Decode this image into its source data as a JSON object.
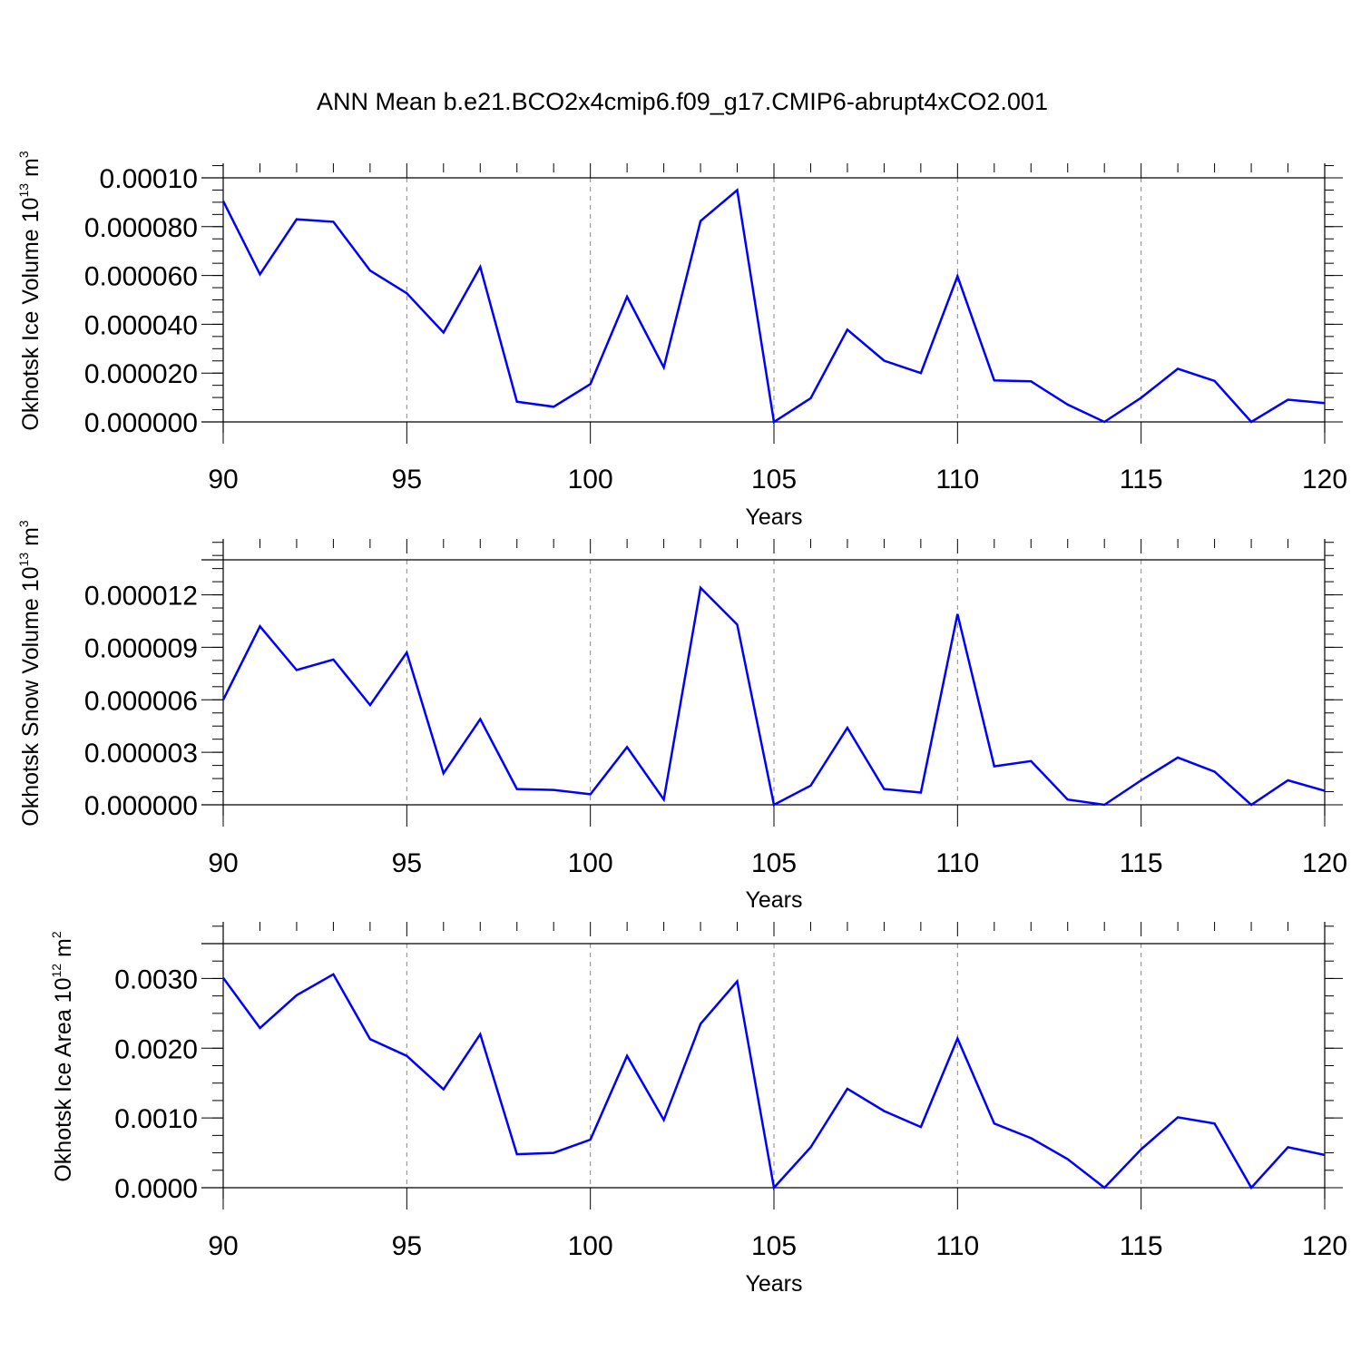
{
  "title": "ANN Mean b.e21.BCO2x4cmip6.f09_g17.CMIP6-abrupt4xCO2.001",
  "colors": {
    "line": "#0000ff",
    "axis": "#000000",
    "grid": "#888888"
  },
  "chart_data": [
    {
      "type": "line",
      "ylabel": {
        "text": "Okhotsk Ice Volume 10",
        "exp": "13",
        "unit": " m",
        "unit_exp": "3"
      },
      "xlabel": "Years",
      "xlim": [
        90,
        120
      ],
      "ylim": [
        -0.0,
        0.0001
      ],
      "xticks": [
        90,
        95,
        100,
        105,
        110,
        115,
        120
      ],
      "xtick_labels": [
        "90",
        "95",
        "100",
        "105",
        "110",
        "115",
        "120"
      ],
      "yticks": [
        0,
        2e-05,
        4e-05,
        6e-05,
        8e-05,
        0.0001
      ],
      "ytick_labels": [
        "0.000000",
        "0.000020",
        "0.000040",
        "0.000060",
        "0.000080",
        "0.00010"
      ],
      "grid": "vertical-dashed",
      "x": [
        90,
        91,
        92,
        93,
        94,
        95,
        96,
        97,
        98,
        99,
        100,
        101,
        102,
        103,
        104,
        105,
        106,
        107,
        108,
        109,
        110,
        111,
        112,
        113,
        114,
        115,
        116,
        117,
        118,
        119,
        120
      ],
      "values": [
        9.05e-05,
        6.05e-05,
        8.3e-05,
        8.2e-05,
        6.2e-05,
        5.27e-05,
        3.66e-05,
        6.35e-05,
        8.3e-06,
        6.2e-06,
        1.55e-05,
        5.13e-05,
        2.23e-05,
        8.23e-05,
        9.5e-05,
        0.0,
        9.7e-06,
        3.78e-05,
        2.51e-05,
        2e-05,
        5.97e-05,
        1.7e-05,
        1.66e-05,
        7.1e-06,
        0.0,
        9.9e-06,
        2.18e-05,
        1.68e-05,
        0.0,
        9.1e-06,
        7.7e-06
      ]
    },
    {
      "type": "line",
      "ylabel": {
        "text": "Okhotsk Snow Volume 10",
        "exp": "13",
        "unit": " m",
        "unit_exp": "3"
      },
      "xlabel": "Years",
      "xlim": [
        90,
        120
      ],
      "ylim": [
        0,
        1.4e-05
      ],
      "xticks": [
        90,
        95,
        100,
        105,
        110,
        115,
        120
      ],
      "xtick_labels": [
        "90",
        "95",
        "100",
        "105",
        "110",
        "115",
        "120"
      ],
      "yticks": [
        0,
        3e-06,
        6e-06,
        9e-06,
        1.2e-05
      ],
      "ytick_labels": [
        "0.000000",
        "0.000003",
        "0.000006",
        "0.000009",
        "0.000012"
      ],
      "grid": "vertical-dashed",
      "x": [
        90,
        91,
        92,
        93,
        94,
        95,
        96,
        97,
        98,
        99,
        100,
        101,
        102,
        103,
        104,
        105,
        106,
        107,
        108,
        109,
        110,
        111,
        112,
        113,
        114,
        115,
        116,
        117,
        118,
        119,
        120
      ],
      "values": [
        6e-06,
        1.02e-05,
        7.7e-06,
        8.3e-06,
        5.7e-06,
        8.7e-06,
        1.8e-06,
        4.9e-06,
        9e-07,
        8.5e-07,
        6e-07,
        3.3e-06,
        3e-07,
        1.24e-05,
        1.03e-05,
        0.0,
        1.1e-06,
        4.4e-06,
        9e-07,
        7e-07,
        1.09e-05,
        2.2e-06,
        2.5e-06,
        3e-07,
        0.0,
        1.4e-06,
        2.7e-06,
        1.9e-06,
        0.0,
        1.4e-06,
        8e-07
      ]
    },
    {
      "type": "line",
      "ylabel": {
        "text": "Okhotsk Ice Area 10",
        "exp": "12",
        "unit": " m",
        "unit_exp": "2"
      },
      "xlabel": "Years",
      "xlim": [
        90,
        120
      ],
      "ylim": [
        0,
        0.0035
      ],
      "xticks": [
        90,
        95,
        100,
        105,
        110,
        115,
        120
      ],
      "xtick_labels": [
        "90",
        "95",
        "100",
        "105",
        "110",
        "115",
        "120"
      ],
      "yticks": [
        0,
        0.001,
        0.002,
        0.003
      ],
      "ytick_labels": [
        "0.0000",
        "0.0010",
        "0.0020",
        "0.0030"
      ],
      "grid": "vertical-dashed",
      "x": [
        90,
        91,
        92,
        93,
        94,
        95,
        96,
        97,
        98,
        99,
        100,
        101,
        102,
        103,
        104,
        105,
        106,
        107,
        108,
        109,
        110,
        111,
        112,
        113,
        114,
        115,
        116,
        117,
        118,
        119,
        120
      ],
      "values": [
        0.00301,
        0.00229,
        0.00276,
        0.00306,
        0.00213,
        0.00189,
        0.00141,
        0.0022,
        0.00048,
        0.0005,
        0.00069,
        0.00189,
        0.00097,
        0.00235,
        0.00296,
        0.0,
        0.00058,
        0.00142,
        0.0011,
        0.00087,
        0.00214,
        0.00092,
        0.00071,
        0.00041,
        0.0,
        0.00055,
        0.00101,
        0.00092,
        0.0,
        0.00058,
        0.00047
      ]
    }
  ]
}
